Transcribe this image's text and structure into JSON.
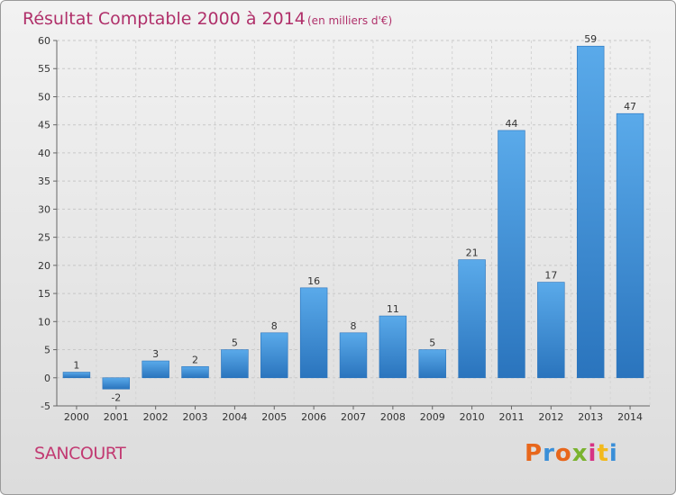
{
  "chart_data": {
    "type": "bar",
    "title": "Résultat Comptable 2000 à 2014",
    "subtitle": "(en milliers d'€)",
    "categories": [
      "2000",
      "2001",
      "2002",
      "2003",
      "2004",
      "2005",
      "2006",
      "2007",
      "2008",
      "2009",
      "2010",
      "2011",
      "2012",
      "2013",
      "2014"
    ],
    "values": [
      1,
      -2,
      3,
      2,
      5,
      8,
      16,
      8,
      11,
      5,
      21,
      44,
      17,
      59,
      47
    ],
    "data_labels": [
      "1",
      "-2",
      "3",
      "2",
      "5",
      "8",
      "16",
      "8",
      "11",
      "5",
      "21",
      "44",
      "17",
      "59",
      "47"
    ],
    "ylim": [
      -5,
      60
    ],
    "yticks": [
      -5,
      0,
      5,
      10,
      15,
      20,
      25,
      30,
      35,
      40,
      45,
      50,
      55,
      60
    ],
    "xlabel": "",
    "ylabel": "",
    "grid": true,
    "bar_color": "#4a9be0",
    "bar_color_dark": "#2a74bd"
  },
  "footer": {
    "commune": "SANCOURT",
    "brand": "Proxiti",
    "brand_colors": [
      "#e8671c",
      "#3a8fd8",
      "#e8671c",
      "#7ab32e",
      "#d63384",
      "#f2b91c",
      "#3a8fd8"
    ]
  }
}
